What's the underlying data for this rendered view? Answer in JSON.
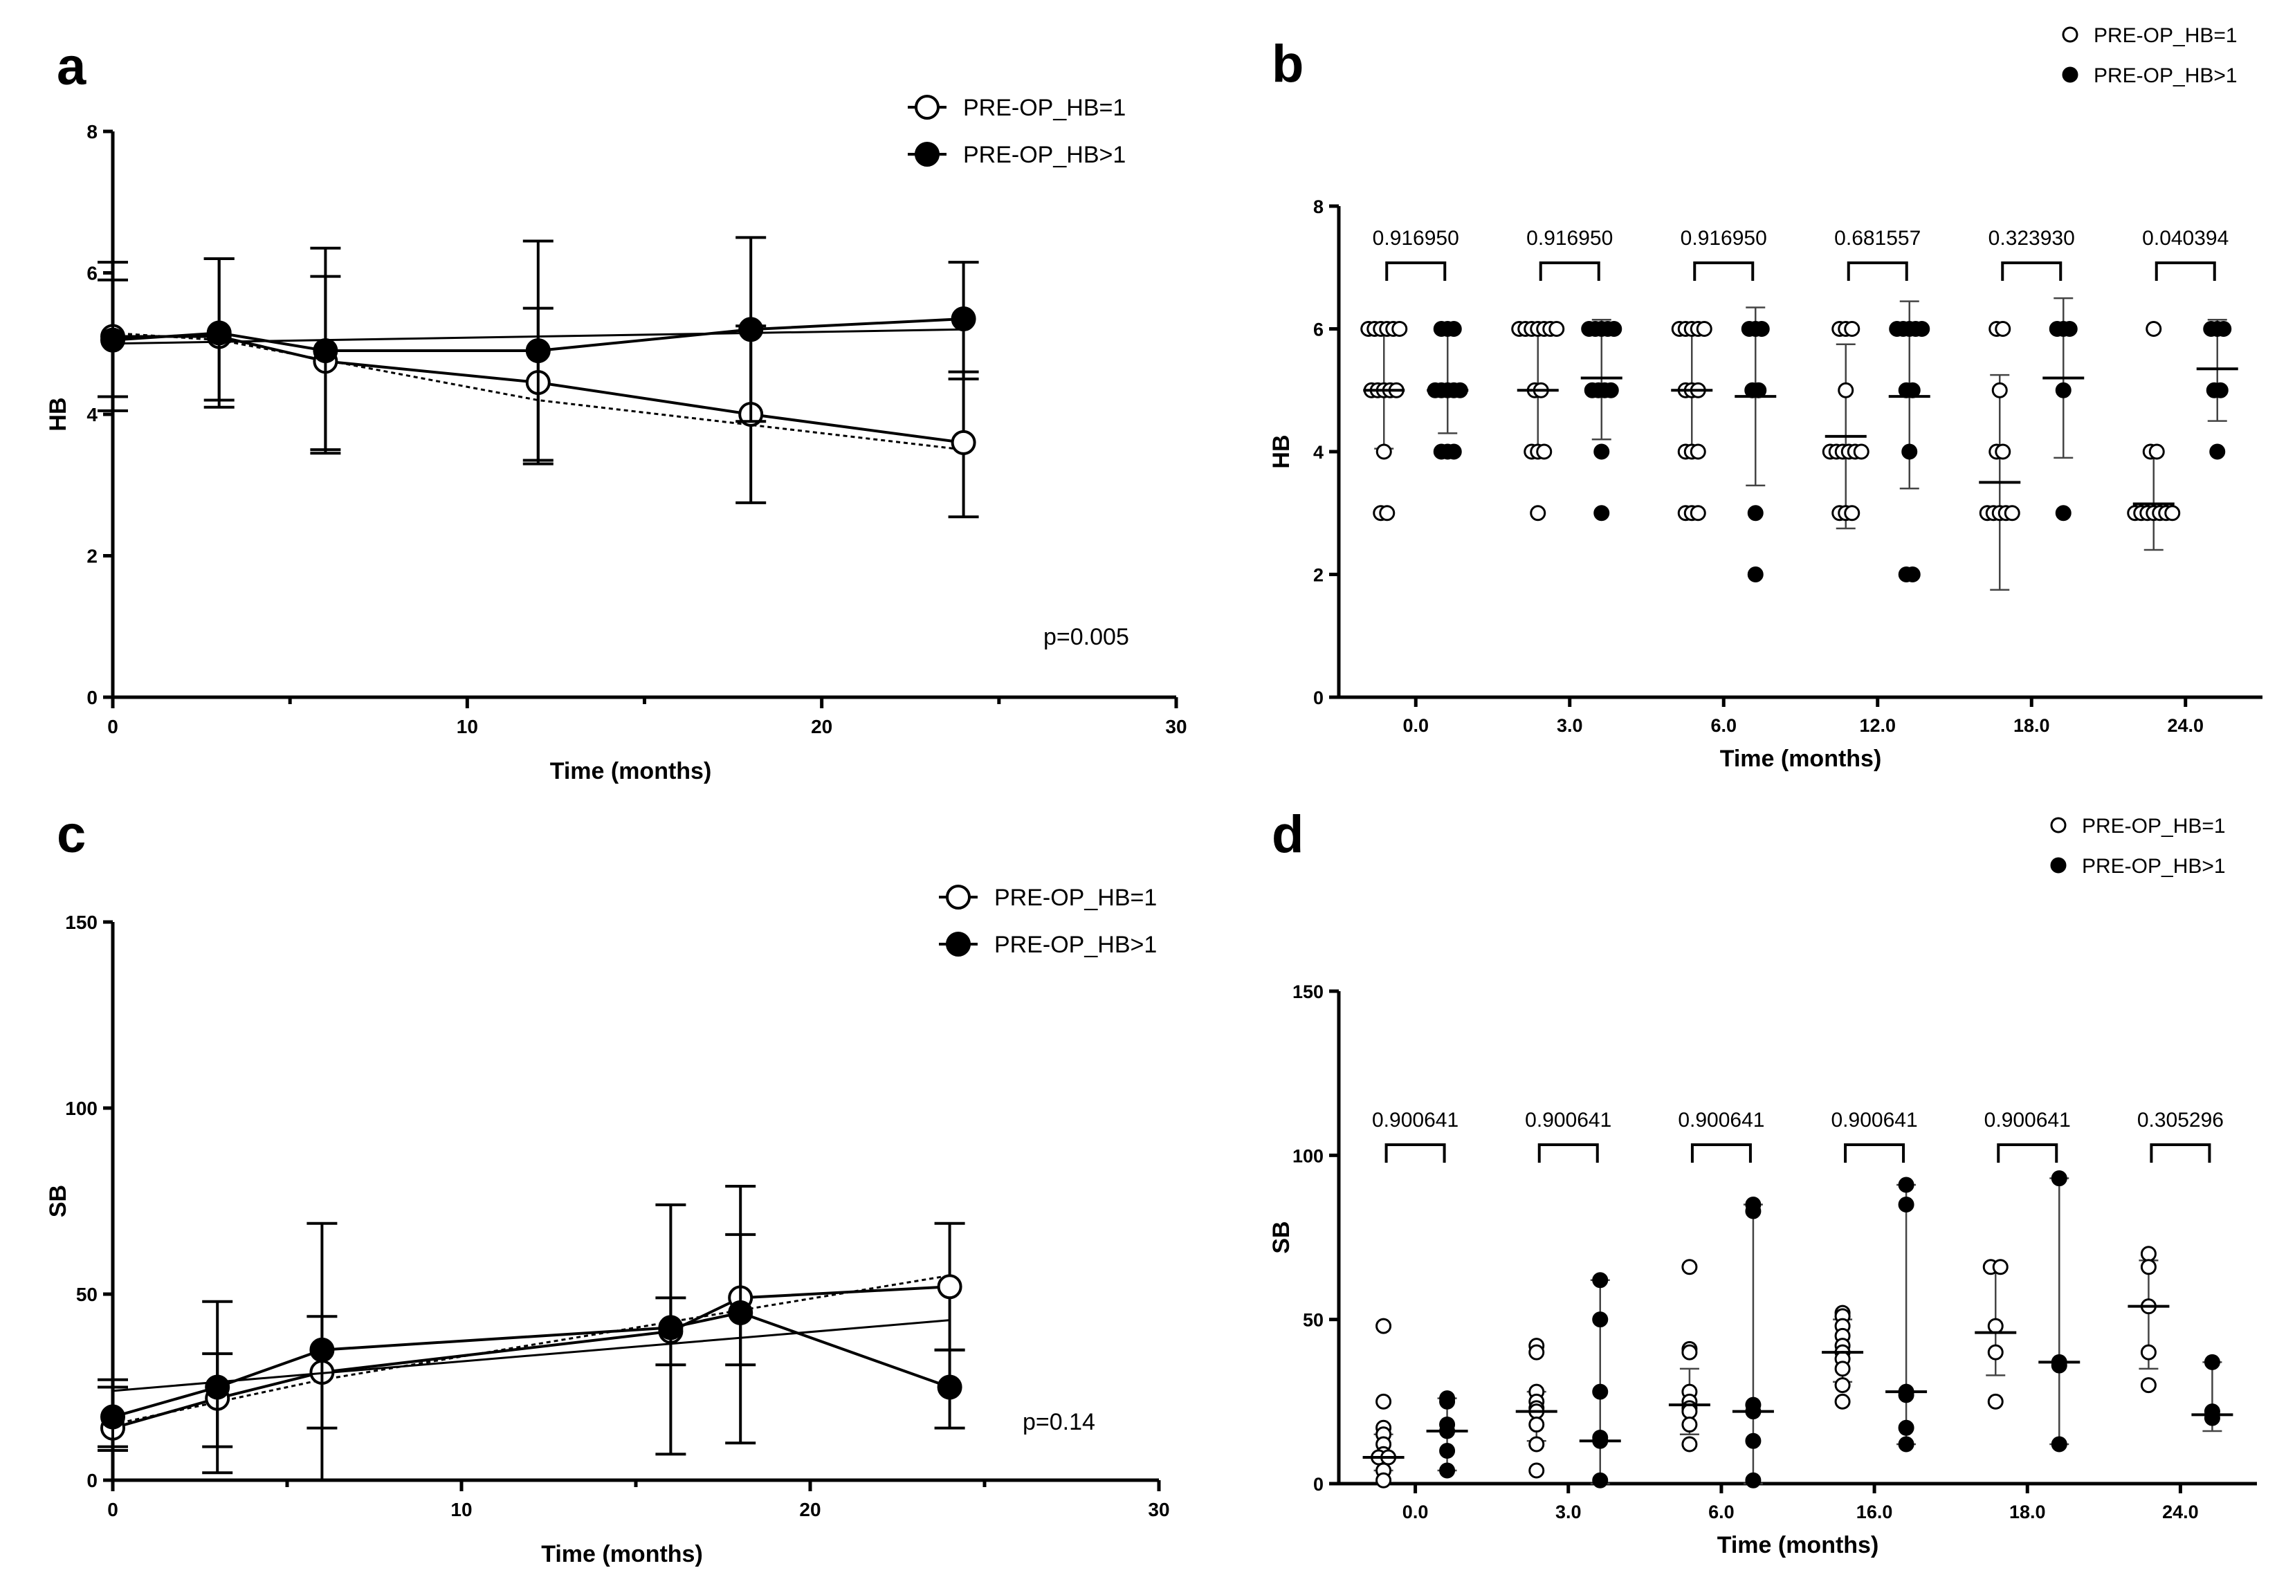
{
  "chart_data": [
    {
      "panel": "a",
      "type": "line",
      "xlabel": "Time (months)",
      "ylabel": "HB",
      "xlim": [
        0,
        30
      ],
      "ylim": [
        0,
        8
      ],
      "x_ticks": [
        0,
        10,
        20,
        30
      ],
      "y_ticks": [
        0,
        2,
        4,
        6,
        8
      ],
      "annotation": "p=0.005",
      "legend": [
        "PRE-OP_HB=1",
        "PRE-OP_HB>1"
      ],
      "series": [
        {
          "name": "PRE-OP_HB=1",
          "marker": "open",
          "x": [
            0,
            3,
            6,
            12,
            18,
            24
          ],
          "values": [
            5.1,
            5.1,
            4.75,
            4.45,
            4.0,
            3.6
          ],
          "err_low": [
            4.05,
            4.2,
            3.5,
            3.35,
            2.75,
            2.55
          ],
          "err_high": [
            6.15,
            6.2,
            5.95,
            5.5,
            5.25,
            4.6
          ],
          "fit": [
            5.15,
            5.05,
            4.2,
            3.5
          ],
          "fit_x": [
            0,
            3,
            12,
            24
          ]
        },
        {
          "name": "PRE-OP_HB>1",
          "marker": "filled",
          "x": [
            0,
            3,
            6,
            12,
            18,
            24
          ],
          "values": [
            5.05,
            5.15,
            4.9,
            4.9,
            5.2,
            5.35
          ],
          "err_low": [
            4.25,
            4.1,
            3.45,
            3.3,
            3.9,
            4.5
          ],
          "err_high": [
            5.9,
            6.2,
            6.35,
            6.45,
            6.5,
            6.15
          ],
          "fit": [
            5.0,
            5.2
          ],
          "fit_x": [
            0,
            24
          ]
        }
      ]
    },
    {
      "panel": "b",
      "type": "scatter",
      "xlabel": "Time (months)",
      "ylabel": "HB",
      "ylim": [
        0,
        8
      ],
      "y_ticks": [
        0,
        2,
        4,
        6,
        8
      ],
      "categories": [
        "0.0",
        "3.0",
        "6.0",
        "12.0",
        "18.0",
        "24.0"
      ],
      "p_values": [
        "0.916950",
        "0.916950",
        "0.916950",
        "0.681557",
        "0.323930",
        "0.040394"
      ],
      "legend": [
        "PRE-OP_HB=1",
        "PRE-OP_HB>1"
      ],
      "series": [
        {
          "name": "PRE-OP_HB=1",
          "marker": "open",
          "points": [
            [
              6,
              6,
              6,
              6,
              6,
              6,
              5,
              5,
              5,
              5,
              5,
              4,
              3,
              3
            ],
            [
              6,
              6,
              6,
              6,
              6,
              6,
              6,
              5,
              5,
              4,
              4,
              4,
              3
            ],
            [
              6,
              6,
              6,
              6,
              6,
              5,
              5,
              5,
              4,
              4,
              4,
              3,
              3,
              3
            ],
            [
              6,
              6,
              6,
              5,
              4,
              4,
              4,
              4,
              4,
              4,
              3,
              3,
              3
            ],
            [
              6,
              6,
              5,
              4,
              4,
              3,
              3,
              3,
              3,
              3
            ],
            [
              6,
              4,
              4,
              3,
              3,
              3,
              3,
              3,
              3,
              3
            ]
          ],
          "mean": [
            5.0,
            5.0,
            5.0,
            4.25,
            3.5,
            3.15
          ],
          "sd_low": [
            4.05,
            4.05,
            4.0,
            2.75,
            1.75,
            2.4
          ],
          "sd_high": [
            6.0,
            6.0,
            6.05,
            5.75,
            5.25,
            4.0
          ]
        },
        {
          "name": "PRE-OP_HB>1",
          "marker": "filled",
          "points": [
            [
              6,
              6,
              6,
              5,
              5,
              5,
              5,
              5,
              4,
              4,
              4
            ],
            [
              6,
              6,
              6,
              6,
              6,
              5,
              5,
              5,
              5,
              4,
              3
            ],
            [
              6,
              6,
              6,
              5,
              5,
              3,
              2
            ],
            [
              6,
              6,
              6,
              6,
              6,
              5,
              5,
              4,
              2,
              2
            ],
            [
              6,
              6,
              6,
              5,
              3
            ],
            [
              6,
              6,
              6,
              5,
              5,
              4
            ]
          ],
          "mean": [
            5.0,
            5.2,
            4.9,
            4.9,
            5.2,
            5.35
          ],
          "sd_low": [
            4.3,
            4.2,
            3.45,
            3.4,
            3.9,
            4.5
          ],
          "sd_high": [
            6.0,
            6.15,
            6.35,
            6.45,
            6.5,
            6.15
          ]
        }
      ]
    },
    {
      "panel": "c",
      "type": "line",
      "xlabel": "Time (months)",
      "ylabel": "SB",
      "xlim": [
        0,
        30
      ],
      "ylim": [
        0,
        150
      ],
      "x_ticks": [
        0,
        10,
        20,
        30
      ],
      "y_ticks": [
        0,
        50,
        100,
        150
      ],
      "annotation": "p=0.14",
      "legend": [
        "PRE-OP_HB=1",
        "PRE-OP_HB>1"
      ],
      "series": [
        {
          "name": "PRE-OP_HB=1",
          "marker": "open",
          "x": [
            0,
            3,
            6,
            16,
            18,
            24
          ],
          "values": [
            14,
            22,
            29,
            40,
            49,
            52
          ],
          "err_low": [
            8,
            9,
            14,
            31,
            31,
            35
          ],
          "err_high": [
            25,
            34,
            44,
            49,
            66,
            69
          ],
          "fit": [
            15,
            21,
            27,
            55
          ],
          "fit_x": [
            0,
            3,
            6,
            24
          ]
        },
        {
          "name": "PRE-OP_HB>1",
          "marker": "filled",
          "x": [
            0,
            3,
            6,
            16,
            18,
            24
          ],
          "values": [
            17,
            25,
            35,
            41,
            45,
            25
          ],
          "err_low": [
            9,
            2,
            0,
            7,
            10,
            14
          ],
          "err_high": [
            27,
            48,
            69,
            74,
            79,
            35
          ],
          "fit": [
            24,
            43
          ],
          "fit_x": [
            0,
            24
          ]
        }
      ]
    },
    {
      "panel": "d",
      "type": "scatter",
      "xlabel": "Time (months)",
      "ylabel": "SB",
      "ylim": [
        0,
        150
      ],
      "y_ticks": [
        0,
        50,
        100,
        150
      ],
      "categories": [
        "0.0",
        "3.0",
        "6.0",
        "16.0",
        "18.0",
        "24.0"
      ],
      "p_values": [
        "0.900641",
        "0.900641",
        "0.900641",
        "0.900641",
        "0.900641",
        "0.305296"
      ],
      "legend": [
        "PRE-OP_HB=1",
        "PRE-OP_HB>1"
      ],
      "series": [
        {
          "name": "PRE-OP_HB=1",
          "marker": "open",
          "points": [
            [
              48,
              25,
              17,
              15,
              12,
              9,
              8,
              8,
              4,
              1
            ],
            [
              42,
              40,
              28,
              25,
              23,
              22,
              18,
              12,
              4
            ],
            [
              66,
              41,
              40,
              28,
              25,
              23,
              22,
              18,
              12
            ],
            [
              52,
              51,
              48,
              45,
              42,
              40,
              38,
              35,
              30,
              25
            ],
            [
              66,
              66,
              48,
              40,
              25
            ],
            [
              70,
              66,
              54,
              40,
              30
            ]
          ],
          "median": [
            8,
            22,
            24,
            40,
            46,
            54
          ],
          "range_low": [
            4,
            13,
            15,
            31,
            33,
            35
          ],
          "range_high": [
            15,
            28,
            35,
            50,
            66,
            68
          ]
        },
        {
          "name": "PRE-OP_HB>1",
          "marker": "filled",
          "points": [
            [
              26,
              25,
              18,
              16,
              10,
              4
            ],
            [
              62,
              50,
              28,
              14,
              13,
              1
            ],
            [
              85,
              83,
              24,
              22,
              13,
              1
            ],
            [
              91,
              85,
              28,
              27,
              17,
              12
            ],
            [
              93,
              37,
              36,
              12
            ],
            [
              37,
              22,
              20
            ]
          ],
          "median": [
            16,
            13,
            22,
            28,
            37,
            21
          ],
          "range_low": [
            4,
            0,
            0,
            12,
            12,
            16
          ],
          "range_high": [
            26,
            62,
            85,
            91,
            93,
            37
          ]
        }
      ]
    }
  ]
}
